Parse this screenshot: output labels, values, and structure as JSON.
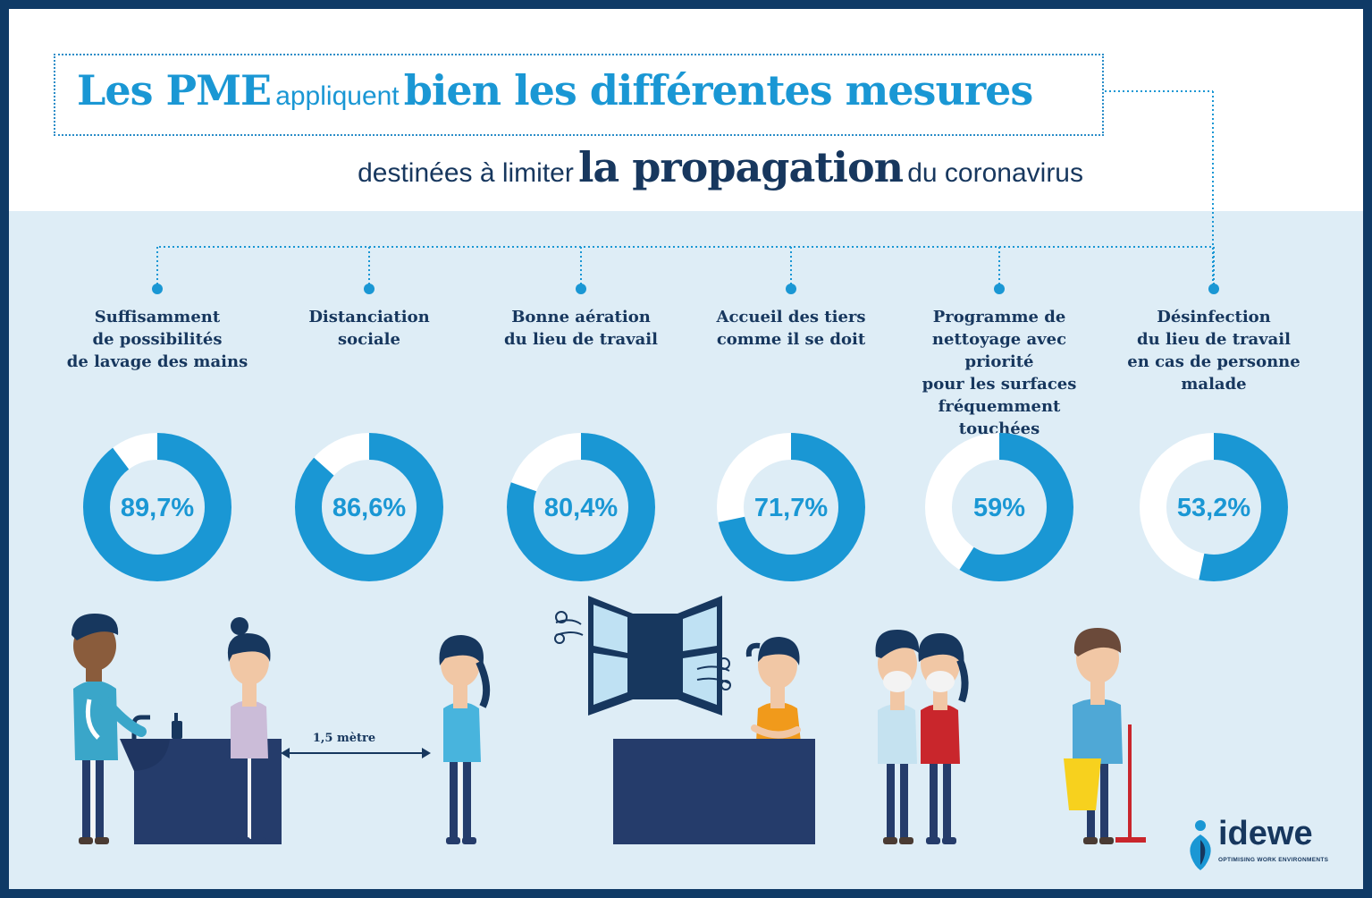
{
  "title": {
    "part1": "Les PME",
    "part2": "appliquent",
    "part3": "bien les différentes mesures"
  },
  "subtitle": {
    "part1": "destinées à limiter",
    "part2": "la propagation",
    "part3": "du coronavirus"
  },
  "chart_data": {
    "type": "pie",
    "title": "Les PME appliquent bien les différentes mesures destinées à limiter la propagation du coronavirus",
    "unit": "%",
    "categories": [
      "Suffisamment de possibilités de lavage des mains",
      "Distanciation sociale",
      "Bonne aération du lieu de travail",
      "Accueil des tiers comme il se doit",
      "Programme de nettoyage avec priorité pour les surfaces fréquemment touchées",
      "Désinfection du lieu de travail en cas de personne malade"
    ],
    "values": [
      89.7,
      86.6,
      80.4,
      71.7,
      59,
      53.2
    ],
    "value_labels": [
      "89,7%",
      "86,6%",
      "80,4%",
      "71,7%",
      "59%",
      "53,2%"
    ],
    "label_lines": [
      [
        "Suffisamment",
        "de possibilités",
        "de lavage des mains"
      ],
      [
        "Distanciation",
        "sociale"
      ],
      [
        "Bonne aération",
        "du lieu de travail"
      ],
      [
        "Accueil des tiers",
        "comme il se doit"
      ],
      [
        "Programme de",
        "nettoyage avec priorité",
        "pour les surfaces",
        "fréquemment touchées"
      ],
      [
        "Désinfection",
        "du lieu de travail",
        "en cas de personne",
        "malade"
      ]
    ]
  },
  "illustration": {
    "distance_label": "1,5 mètre"
  },
  "logo": {
    "name": "idewe",
    "tagline": "OPTIMISING WORK ENVIRONMENTS"
  },
  "colors": {
    "accent": "#1a97d4",
    "navy": "#17375e",
    "frame": "#0f3a66",
    "background": "#deedf6",
    "ring_remainder": "#ffffff"
  }
}
